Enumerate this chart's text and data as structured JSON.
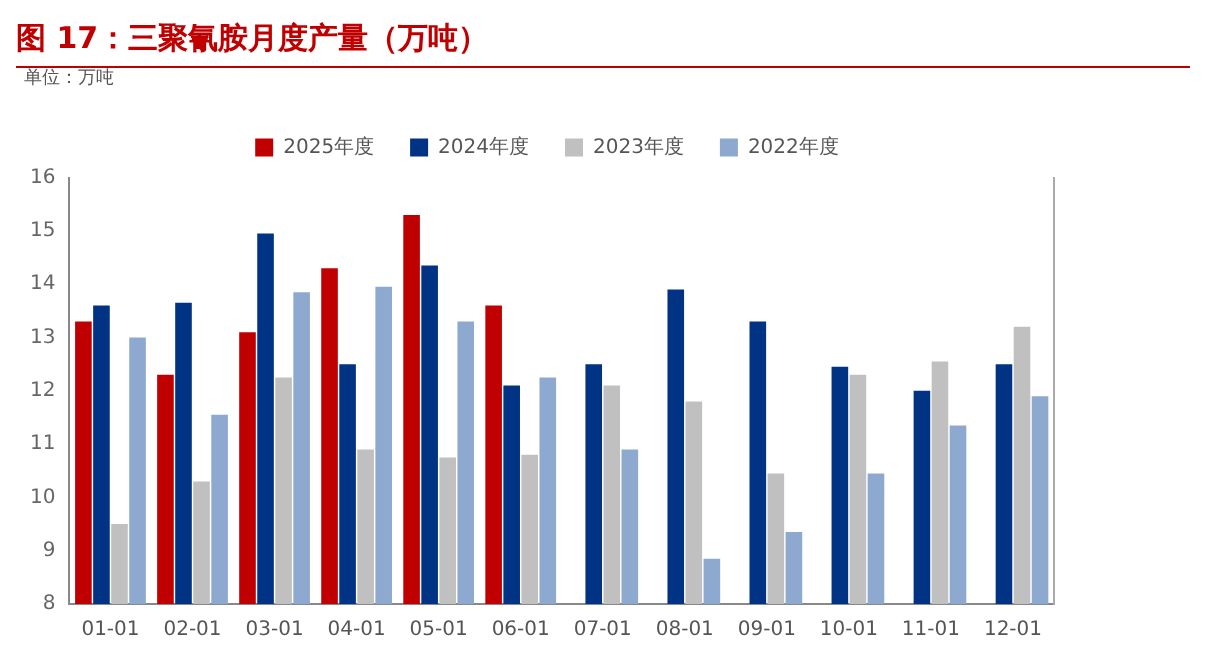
{
  "chart_data": {
    "type": "bar",
    "title": "图 17：三聚氰胺月度产量（万吨）",
    "ylabel": "单位：万吨",
    "categories": [
      "01-01",
      "02-01",
      "03-01",
      "04-01",
      "05-01",
      "06-01",
      "07-01",
      "08-01",
      "09-01",
      "10-01",
      "11-01",
      "12-01"
    ],
    "series": [
      {
        "name": "2025年度",
        "color": "#c00000",
        "values": [
          13.3,
          12.3,
          13.1,
          14.3,
          15.3,
          13.6,
          null,
          null,
          null,
          null,
          null,
          null
        ]
      },
      {
        "name": "2024年度",
        "color": "#003383",
        "values": [
          13.6,
          13.65,
          14.95,
          12.5,
          14.35,
          12.1,
          12.5,
          13.9,
          13.3,
          12.45,
          12.0,
          12.5
        ]
      },
      {
        "name": "2023年度",
        "color": "#c0c0c0",
        "values": [
          9.5,
          10.3,
          12.25,
          10.9,
          10.75,
          10.8,
          12.1,
          11.8,
          10.45,
          12.3,
          12.55,
          13.2
        ]
      },
      {
        "name": "2022年度",
        "color": "#8ea9cf",
        "values": [
          13.0,
          11.55,
          13.85,
          13.95,
          13.3,
          12.25,
          10.9,
          8.85,
          9.35,
          10.45,
          11.35,
          11.9
        ]
      }
    ],
    "ylim": [
      8,
      16
    ],
    "yticks": [
      8,
      9,
      10,
      11,
      12,
      13,
      14,
      15,
      16
    ],
    "grid": false,
    "legend": "top"
  }
}
